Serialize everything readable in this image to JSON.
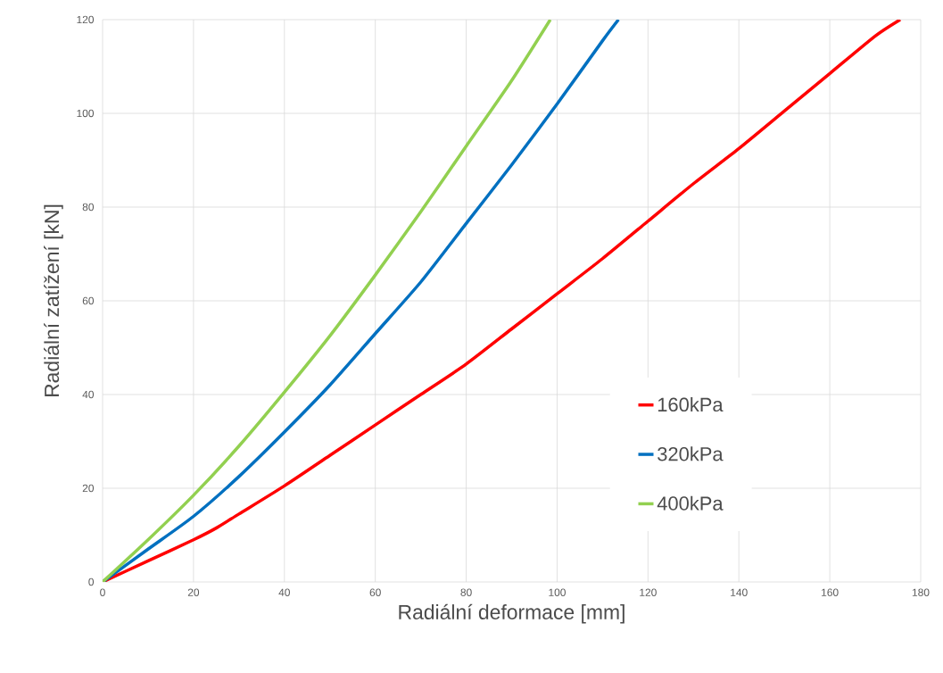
{
  "chart_data": {
    "type": "line",
    "xlabel": "Radiální deformace [mm]",
    "ylabel": "Radiální zatížení [kN]",
    "xlim": [
      0,
      180
    ],
    "ylim": [
      0,
      120
    ],
    "xticks": [
      0,
      20,
      40,
      60,
      80,
      100,
      120,
      140,
      160,
      180
    ],
    "yticks": [
      0,
      20,
      40,
      60,
      80,
      100,
      120
    ],
    "grid": true,
    "legend": "bottom right",
    "marker": "none",
    "line_style": "solid",
    "series": [
      {
        "name": "160kPa",
        "color": "#ff0000",
        "x": [
          0,
          10,
          20,
          25,
          30,
          40,
          50,
          60,
          70,
          80,
          90,
          100,
          110,
          120,
          130,
          140,
          150,
          160,
          170,
          175.5
        ],
        "values": [
          0,
          4.5,
          9,
          11.5,
          14.5,
          20.5,
          27,
          33.5,
          40,
          46.5,
          54,
          61.5,
          69,
          77,
          85,
          92.5,
          100.5,
          108.5,
          116.5,
          120
        ]
      },
      {
        "name": "320kPa",
        "color": "#0070c0",
        "x": [
          0,
          10,
          20,
          30,
          40,
          50,
          60,
          70,
          80,
          90,
          100,
          110,
          113.5
        ],
        "values": [
          0,
          7,
          14,
          22.5,
          32,
          42,
          53,
          64,
          76.5,
          89,
          102,
          115.5,
          120
        ]
      },
      {
        "name": "400kPa",
        "color": "#92d050",
        "x": [
          0,
          10,
          20,
          30,
          40,
          50,
          60,
          70,
          80,
          90,
          98.5
        ],
        "values": [
          0,
          9,
          18.5,
          29,
          40.5,
          52.5,
          65.5,
          79,
          93,
          107,
          120
        ]
      }
    ]
  }
}
